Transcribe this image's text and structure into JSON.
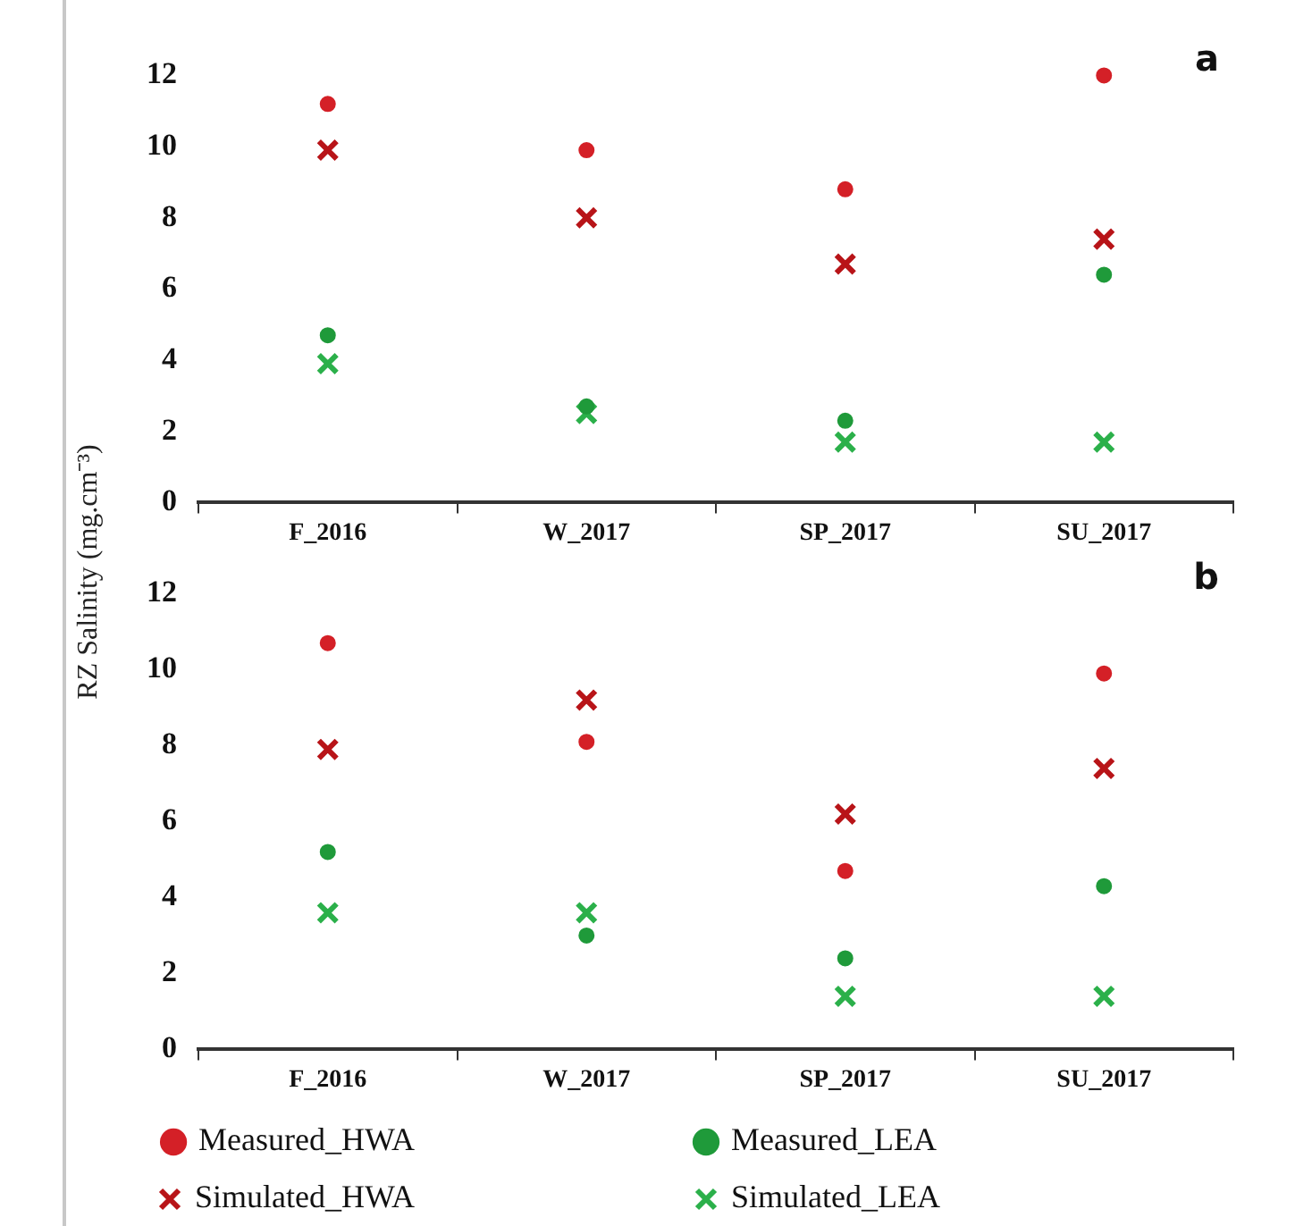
{
  "chart_data": [
    {
      "type": "scatter",
      "ylabel": "RZ Salinity (mg.cm⁻³)",
      "annotations": [
        "a"
      ],
      "categories": [
        "F_2016",
        "W_2017",
        "SP_2017",
        "SU_2017"
      ],
      "ylim": [
        0,
        12
      ],
      "yticks": [
        0,
        2,
        4,
        6,
        8,
        10,
        12
      ],
      "grid": false,
      "legend": false,
      "series": [
        {
          "color": "#b81418",
          "marker": "cross",
          "values": [
            9.9,
            8.0,
            6.7,
            7.4
          ]
        },
        {
          "color": "#2bb04a",
          "marker": "cross",
          "values": [
            3.9,
            2.5,
            1.7,
            1.7
          ]
        },
        {
          "color": "#d42027",
          "marker": "circle",
          "values": [
            11.2,
            9.9,
            8.8,
            12.0
          ]
        },
        {
          "color": "#1f9a3a",
          "marker": "circle",
          "values": [
            4.7,
            2.7,
            2.3,
            6.4
          ]
        }
      ]
    },
    {
      "type": "scatter",
      "annotations": [
        "b"
      ],
      "categories": [
        "F_2016",
        "W_2017",
        "SP_2017",
        "SU_2017"
      ],
      "ylim": [
        0,
        12
      ],
      "yticks": [
        0,
        2,
        4,
        6,
        8,
        10,
        12
      ],
      "grid": false,
      "legend": "bottom",
      "series": [
        {
          "name": "Simulated_HWA",
          "color": "#b81418",
          "marker": "cross",
          "values": [
            7.9,
            9.2,
            6.2,
            7.4
          ]
        },
        {
          "name": "Simulated_LEA",
          "color": "#2bb04a",
          "marker": "cross",
          "values": [
            3.6,
            3.6,
            1.4,
            1.4
          ]
        },
        {
          "name": "Measured_HWA",
          "color": "#d42027",
          "marker": "circle",
          "values": [
            10.7,
            8.1,
            4.7,
            9.9
          ]
        },
        {
          "name": "Measured_LEA",
          "color": "#1f9a3a",
          "marker": "circle",
          "values": [
            5.2,
            3.0,
            2.4,
            4.3
          ]
        }
      ]
    }
  ]
}
